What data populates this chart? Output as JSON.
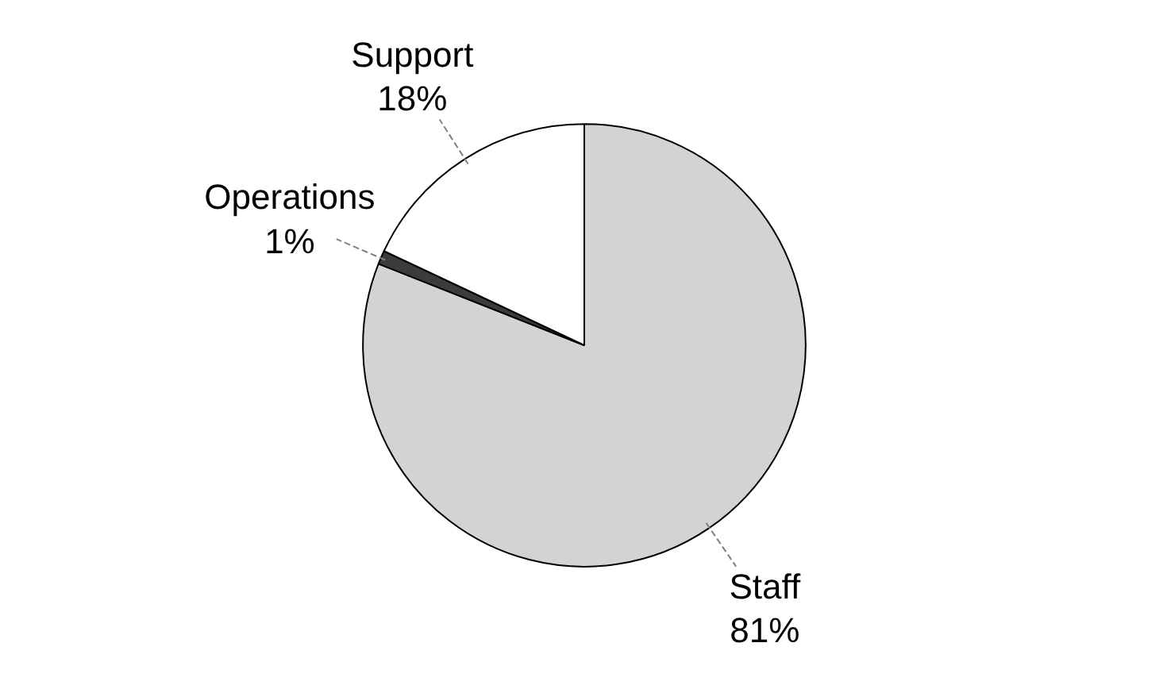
{
  "chart_data": {
    "type": "pie",
    "categories": [
      "Staff",
      "Operations",
      "Support"
    ],
    "values": [
      81,
      1,
      18
    ],
    "colors": [
      "#d3d3d3",
      "#3c3c3c",
      "#ffffff"
    ],
    "value_labels": [
      "81%",
      "1%",
      "18%"
    ]
  }
}
